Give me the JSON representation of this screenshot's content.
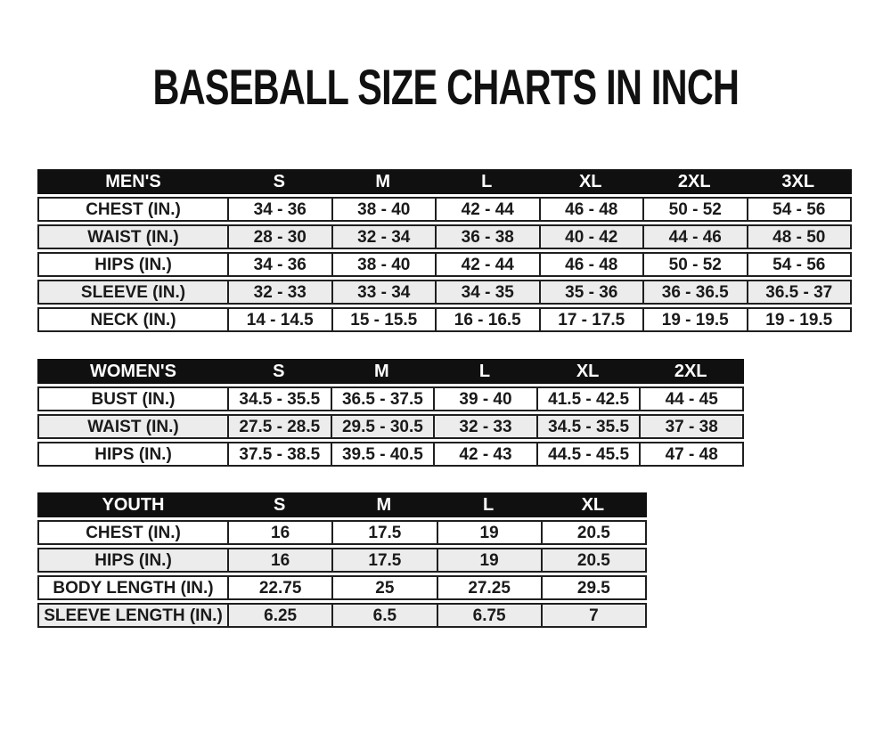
{
  "page": {
    "title": "BASEBALL SIZE CHARTS IN INCH"
  },
  "colors": {
    "background": "#ffffff",
    "header_bg": "#101010",
    "header_text": "#ffffff",
    "row_stripe": "#ececec",
    "border": "#1f1f1f",
    "text": "#141414"
  },
  "chart_data": [
    {
      "type": "table",
      "title": "MEN'S",
      "headers": [
        "MEN'S",
        "S",
        "M",
        "L",
        "XL",
        "2XL",
        "3XL"
      ],
      "rows": [
        {
          "label": "CHEST (IN.)",
          "values": [
            "34 - 36",
            "38 - 40",
            "42 - 44",
            "46 - 48",
            "50 - 52",
            "54 - 56"
          ]
        },
        {
          "label": "WAIST (IN.)",
          "values": [
            "28 - 30",
            "32 - 34",
            "36 - 38",
            "40 - 42",
            "44 - 46",
            "48 - 50"
          ]
        },
        {
          "label": "HIPS (IN.)",
          "values": [
            "34 - 36",
            "38 - 40",
            "42 - 44",
            "46 - 48",
            "50 - 52",
            "54 - 56"
          ]
        },
        {
          "label": "SLEEVE (IN.)",
          "values": [
            "32 - 33",
            "33 - 34",
            "34 - 35",
            "35 - 36",
            "36 - 36.5",
            "36.5 - 37"
          ]
        },
        {
          "label": "NECK (IN.)",
          "values": [
            "14 - 14.5",
            "15 - 15.5",
            "16 - 16.5",
            "17 - 17.5",
            "19 - 19.5",
            "19 - 19.5"
          ]
        }
      ]
    },
    {
      "type": "table",
      "title": "WOMEN'S",
      "headers": [
        "WOMEN'S",
        "S",
        "M",
        "L",
        "XL",
        "2XL"
      ],
      "rows": [
        {
          "label": "BUST (IN.)",
          "values": [
            "34.5 - 35.5",
            "36.5 - 37.5",
            "39 - 40",
            "41.5 - 42.5",
            "44 - 45"
          ]
        },
        {
          "label": "WAIST (IN.)",
          "values": [
            "27.5 - 28.5",
            "29.5 - 30.5",
            "32 - 33",
            "34.5 - 35.5",
            "37 - 38"
          ]
        },
        {
          "label": "HIPS (IN.)",
          "values": [
            "37.5 - 38.5",
            "39.5 - 40.5",
            "42 - 43",
            "44.5 - 45.5",
            "47 - 48"
          ]
        }
      ]
    },
    {
      "type": "table",
      "title": "YOUTH",
      "headers": [
        "YOUTH",
        "S",
        "M",
        "L",
        "XL"
      ],
      "rows": [
        {
          "label": "CHEST (IN.)",
          "values": [
            "16",
            "17.5",
            "19",
            "20.5"
          ]
        },
        {
          "label": "HIPS (IN.)",
          "values": [
            "16",
            "17.5",
            "19",
            "20.5"
          ]
        },
        {
          "label": "BODY LENGTH (IN.)",
          "values": [
            "22.75",
            "25",
            "27.25",
            "29.5"
          ]
        },
        {
          "label": "SLEEVE LENGTH (IN.)",
          "values": [
            "6.25",
            "6.5",
            "6.75",
            "7"
          ]
        }
      ]
    }
  ]
}
